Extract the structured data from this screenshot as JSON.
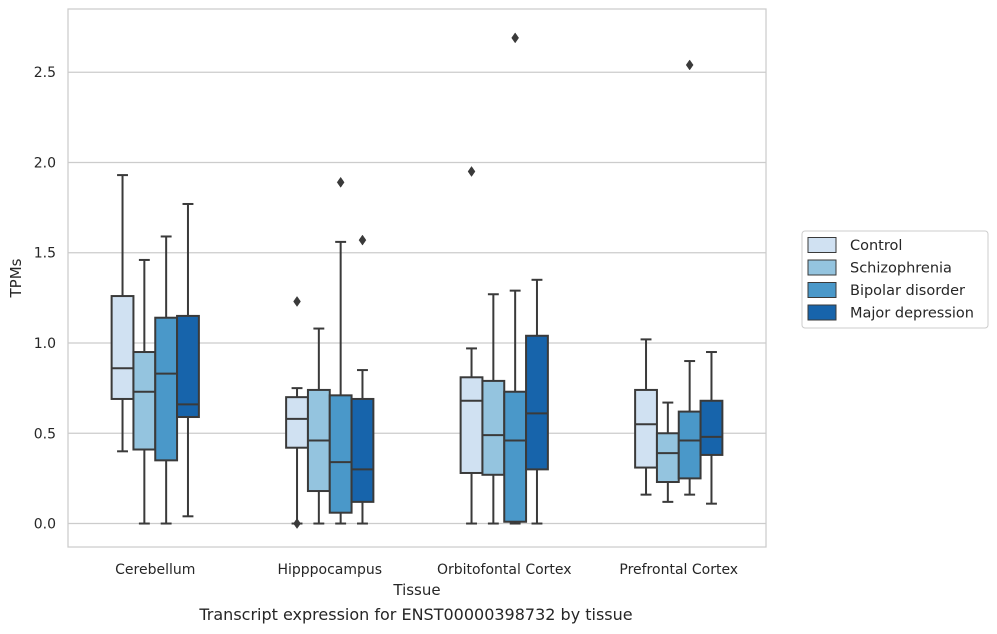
{
  "chart_data": {
    "type": "box",
    "xlabel": "Tissue",
    "ylabel": "TPMs",
    "caption": "Transcript expression for ENST00000398732 by tissue",
    "ylim": [
      -0.13,
      2.85
    ],
    "yticks": [
      "0.0",
      "0.5",
      "1.0",
      "1.5",
      "2.0",
      "2.5"
    ],
    "grid": "horizontal",
    "legend_position": "right",
    "categories": [
      "Cerebellum",
      "Hipppocampus",
      "Orbitofontal Cortex",
      "Prefrontal Cortex"
    ],
    "series": [
      {
        "name": "Control",
        "color": "#d0e1f2",
        "boxes": [
          {
            "whislo": 0.4,
            "q1": 0.69,
            "med": 0.86,
            "q3": 1.26,
            "whishi": 1.93,
            "fliers": []
          },
          {
            "whislo": 0.0,
            "q1": 0.42,
            "med": 0.58,
            "q3": 0.7,
            "whishi": 0.75,
            "fliers": [
              1.23,
              0.0
            ]
          },
          {
            "whislo": 0.0,
            "q1": 0.28,
            "med": 0.68,
            "q3": 0.81,
            "whishi": 0.97,
            "fliers": [
              1.95
            ]
          },
          {
            "whislo": 0.16,
            "q1": 0.31,
            "med": 0.55,
            "q3": 0.74,
            "whishi": 1.02,
            "fliers": []
          }
        ]
      },
      {
        "name": "Schizophrenia",
        "color": "#94c4df",
        "boxes": [
          {
            "whislo": 0.0,
            "q1": 0.41,
            "med": 0.73,
            "q3": 0.95,
            "whishi": 1.46,
            "fliers": []
          },
          {
            "whislo": 0.0,
            "q1": 0.18,
            "med": 0.46,
            "q3": 0.74,
            "whishi": 1.08,
            "fliers": []
          },
          {
            "whislo": 0.0,
            "q1": 0.27,
            "med": 0.49,
            "q3": 0.79,
            "whishi": 1.27,
            "fliers": []
          },
          {
            "whislo": 0.12,
            "q1": 0.23,
            "med": 0.39,
            "q3": 0.5,
            "whishi": 0.67,
            "fliers": []
          }
        ]
      },
      {
        "name": "Bipolar disorder",
        "color": "#4a98c9",
        "boxes": [
          {
            "whislo": 0.0,
            "q1": 0.35,
            "med": 0.83,
            "q3": 1.14,
            "whishi": 1.59,
            "fliers": []
          },
          {
            "whislo": 0.0,
            "q1": 0.06,
            "med": 0.34,
            "q3": 0.71,
            "whishi": 1.56,
            "fliers": [
              1.89
            ]
          },
          {
            "whislo": 0.0,
            "q1": 0.01,
            "med": 0.46,
            "q3": 0.73,
            "whishi": 1.29,
            "fliers": [
              2.69
            ]
          },
          {
            "whislo": 0.16,
            "q1": 0.25,
            "med": 0.46,
            "q3": 0.62,
            "whishi": 0.9,
            "fliers": [
              2.54
            ]
          }
        ]
      },
      {
        "name": "Major depression",
        "color": "#1764ab",
        "boxes": [
          {
            "whislo": 0.04,
            "q1": 0.59,
            "med": 0.66,
            "q3": 1.15,
            "whishi": 1.77,
            "fliers": []
          },
          {
            "whislo": 0.0,
            "q1": 0.12,
            "med": 0.3,
            "q3": 0.69,
            "whishi": 0.85,
            "fliers": [
              1.57
            ]
          },
          {
            "whislo": 0.0,
            "q1": 0.3,
            "med": 0.61,
            "q3": 1.04,
            "whishi": 1.35,
            "fliers": []
          },
          {
            "whislo": 0.11,
            "q1": 0.38,
            "med": 0.48,
            "q3": 0.68,
            "whishi": 0.95,
            "fliers": []
          }
        ]
      }
    ]
  }
}
